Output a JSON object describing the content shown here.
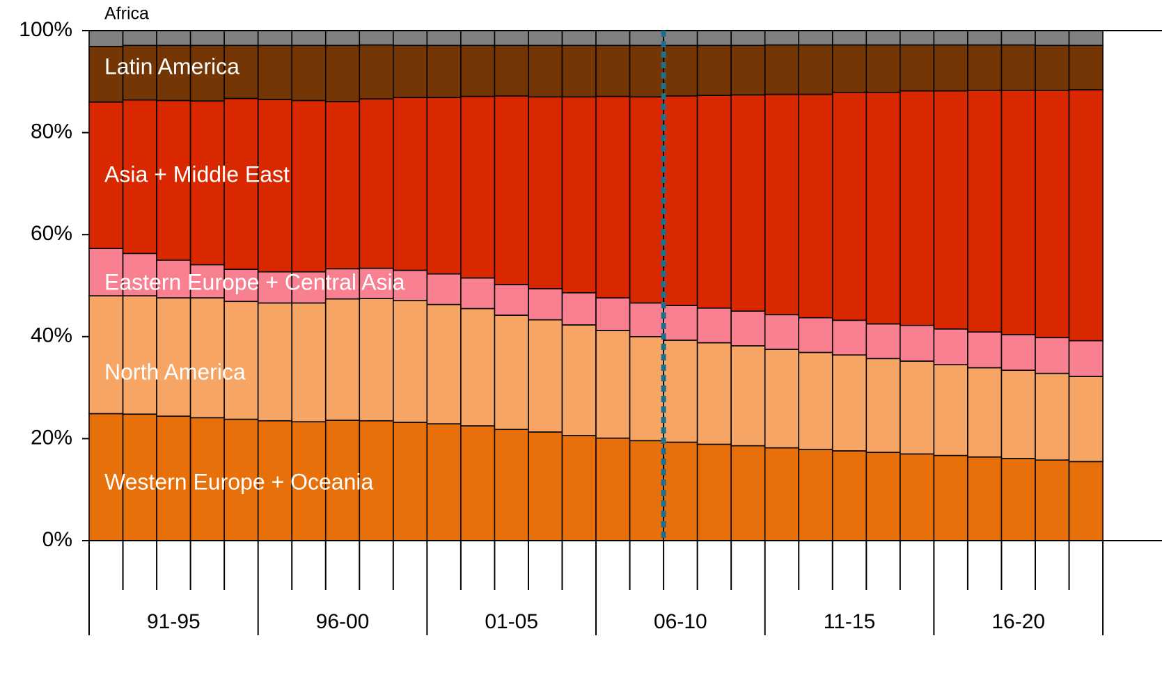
{
  "chart_data": {
    "type": "bar",
    "stacked": true,
    "normalized": true,
    "title": "",
    "xlabel": "",
    "ylabel": "",
    "ylim": [
      0,
      100
    ],
    "y_ticks": [
      "0%",
      "20%",
      "40%",
      "60%",
      "80%",
      "100%"
    ],
    "grid": false,
    "legend": "inline labels on the left side of the plot",
    "periods": [
      "91-95",
      "96-00",
      "01-05",
      "06-10",
      "11-15",
      "16-20"
    ],
    "years_per_period": 5,
    "bar_count": 30,
    "divider_after_bar": 17,
    "series": [
      {
        "name": "Western Europe + Oceania",
        "color": "#E8700A",
        "values": [
          24.9,
          24.8,
          24.4,
          24.1,
          23.8,
          23.5,
          23.3,
          23.6,
          23.5,
          23.2,
          22.9,
          22.5,
          21.8,
          21.3,
          20.6,
          20.1,
          19.6,
          19.3,
          18.9,
          18.6,
          18.2,
          17.9,
          17.6,
          17.3,
          17.0,
          16.7,
          16.4,
          16.1,
          15.8,
          15.5
        ]
      },
      {
        "name": "North America",
        "color": "#F6A564",
        "values": [
          23.1,
          23.2,
          23.2,
          23.5,
          23.1,
          23.1,
          23.3,
          23.8,
          24.0,
          23.9,
          23.4,
          23.0,
          22.4,
          22.0,
          21.7,
          21.1,
          20.4,
          20.0,
          19.9,
          19.6,
          19.3,
          19.0,
          18.8,
          18.4,
          18.2,
          17.8,
          17.5,
          17.3,
          17.0,
          16.7
        ]
      },
      {
        "name": "Eastern Europe + Central Asia",
        "color": "#F88090",
        "values": [
          9.3,
          8.3,
          7.4,
          6.5,
          6.3,
          6.1,
          6.1,
          5.9,
          5.9,
          5.9,
          6.0,
          6.0,
          6.0,
          6.1,
          6.3,
          6.4,
          6.6,
          6.8,
          6.8,
          6.8,
          6.8,
          6.8,
          6.8,
          6.8,
          7.0,
          7.0,
          7.0,
          7.0,
          7.0,
          7.0
        ]
      },
      {
        "name": "Asia + Middle East",
        "color": "#D92800",
        "values": [
          28.7,
          30.1,
          31.3,
          32.1,
          33.5,
          33.8,
          33.6,
          32.8,
          33.2,
          33.9,
          34.6,
          35.6,
          37.0,
          37.6,
          38.4,
          39.5,
          40.4,
          41.1,
          41.7,
          42.4,
          43.2,
          43.8,
          44.7,
          45.4,
          46.0,
          46.7,
          47.4,
          47.9,
          48.5,
          49.2
        ]
      },
      {
        "name": "Latin America",
        "color": "#733604",
        "values": [
          10.9,
          10.7,
          10.8,
          10.9,
          10.4,
          10.6,
          10.8,
          11.0,
          10.6,
          10.2,
          10.2,
          10.0,
          9.9,
          10.1,
          10.1,
          10.0,
          10.1,
          9.9,
          9.8,
          9.7,
          9.7,
          9.7,
          9.3,
          9.3,
          9.0,
          9.0,
          8.9,
          8.9,
          8.8,
          8.7
        ]
      },
      {
        "name": "Africa",
        "color": "#808080",
        "values": [
          3.1,
          2.9,
          2.9,
          2.9,
          2.9,
          2.9,
          2.9,
          2.9,
          2.8,
          2.9,
          2.9,
          2.9,
          2.9,
          2.9,
          2.9,
          2.9,
          2.9,
          2.9,
          2.9,
          2.9,
          2.8,
          2.8,
          2.8,
          2.8,
          2.8,
          2.8,
          2.8,
          2.8,
          2.9,
          2.9
        ]
      }
    ]
  }
}
